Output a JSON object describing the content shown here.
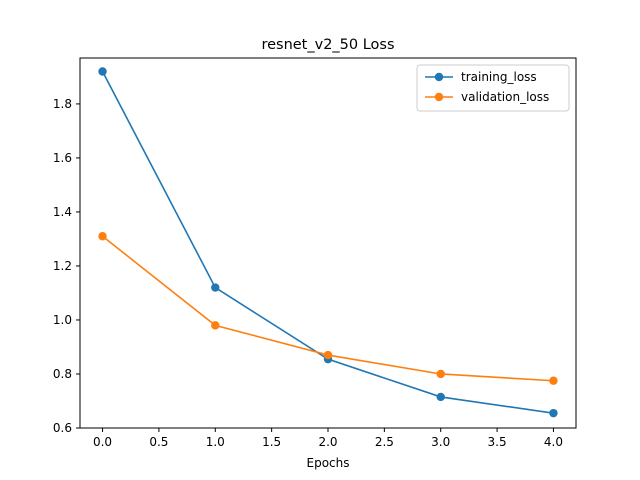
{
  "chart_data": {
    "type": "line",
    "title": "resnet_v2_50 Loss",
    "xlabel": "Epochs",
    "ylabel": "",
    "xlim": [
      -0.2,
      4.2
    ],
    "ylim": [
      0.6,
      1.97
    ],
    "xticks": [
      0.0,
      0.5,
      1.0,
      1.5,
      2.0,
      2.5,
      3.0,
      3.5,
      4.0
    ],
    "xtick_labels": [
      "0.0",
      "0.5",
      "1.0",
      "1.5",
      "2.0",
      "2.5",
      "3.0",
      "3.5",
      "4.0"
    ],
    "yticks": [
      0.6,
      0.8,
      1.0,
      1.2,
      1.4,
      1.6,
      1.8
    ],
    "ytick_labels": [
      "0.6",
      "0.8",
      "1.0",
      "1.2",
      "1.4",
      "1.6",
      "1.8"
    ],
    "x": [
      0,
      1,
      2,
      3,
      4
    ],
    "series": [
      {
        "name": "training_loss",
        "color": "#1f77b4",
        "values": [
          1.92,
          1.12,
          0.855,
          0.715,
          0.655
        ]
      },
      {
        "name": "validation_loss",
        "color": "#ff7f0e",
        "values": [
          1.31,
          0.98,
          0.87,
          0.8,
          0.775
        ]
      }
    ],
    "grid": false,
    "legend": "top-right"
  }
}
